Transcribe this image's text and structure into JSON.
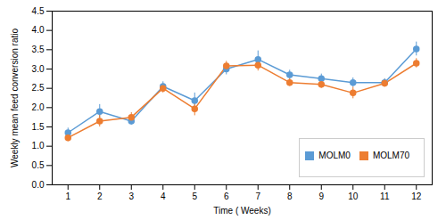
{
  "chart_data": {
    "type": "line",
    "x": [
      1,
      2,
      3,
      4,
      5,
      6,
      7,
      8,
      9,
      10,
      11,
      12
    ],
    "series": [
      {
        "name": "MOLM0",
        "color": "#5B9BD5",
        "values": [
          1.35,
          1.9,
          1.65,
          2.55,
          2.18,
          3.0,
          3.25,
          2.85,
          2.75,
          2.65,
          2.65,
          3.52
        ],
        "errors": [
          0.12,
          0.18,
          0.1,
          0.12,
          0.2,
          0.15,
          0.22,
          0.12,
          0.12,
          0.12,
          0.1,
          0.18
        ]
      },
      {
        "name": "MOLM70",
        "color": "#ED7D31",
        "values": [
          1.22,
          1.65,
          1.75,
          2.5,
          1.97,
          3.08,
          3.1,
          2.65,
          2.6,
          2.38,
          2.63,
          3.15
        ],
        "errors": [
          0.1,
          0.15,
          0.12,
          0.12,
          0.18,
          0.12,
          0.15,
          0.1,
          0.1,
          0.15,
          0.1,
          0.12
        ]
      }
    ],
    "xlabel": "Time ( Weeks)",
    "ylabel": "Weekly mean feed conversion ratio",
    "xlim": [
      0.5,
      12.5
    ],
    "xticks": [
      1,
      2,
      3,
      4,
      5,
      6,
      7,
      8,
      9,
      10,
      11,
      12
    ],
    "ylim": [
      0,
      4.5
    ],
    "yticks": [
      {
        "value": 0,
        "label": "0.0"
      },
      0.5,
      {
        "value": 1,
        "label": "1.0"
      },
      1.5,
      {
        "value": 2,
        "label": "2.0"
      },
      2.5,
      {
        "value": 3,
        "label": "3.0"
      },
      3.5,
      {
        "value": 4,
        "label": "4.0"
      },
      4.5
    ],
    "marker": "circle",
    "legend": "lower right",
    "grid": false
  }
}
